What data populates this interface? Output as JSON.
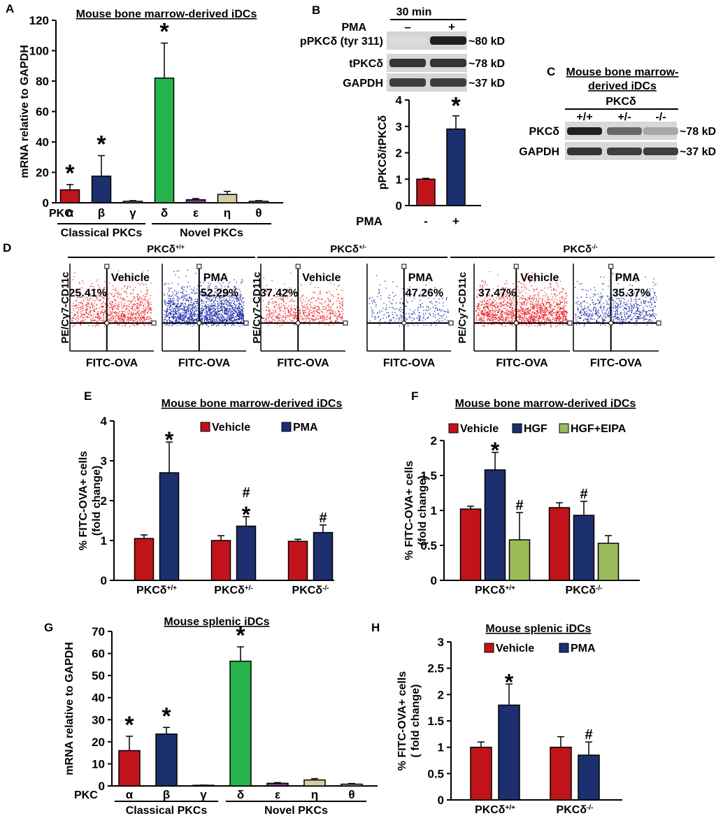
{
  "colors": {
    "red": "#c0141a",
    "navy": "#1c2f6e",
    "green": "#27b34b",
    "purple": "#7a3a93",
    "tan": "#d5cda6",
    "gray": "#bcbcbc",
    "lightgreen": "#9bbb59",
    "scatter_red": "#e8262a",
    "scatter_blue": "#1f2fa8"
  },
  "chart_data": [
    {
      "panel": "A",
      "type": "bar",
      "title": "Mouse bone marrow-derived iDCs",
      "ylabel": "mRNA relative to GAPDH",
      "ylim": [
        0,
        120
      ],
      "yticks": [
        0,
        20,
        40,
        60,
        80,
        100,
        120
      ],
      "category_prefix": "PKC",
      "categories": [
        "α",
        "β",
        "γ",
        "δ",
        "ε",
        "η",
        "θ"
      ],
      "values": [
        8.5,
        17.5,
        1.0,
        82,
        2.0,
        5.5,
        1.0
      ],
      "errors": [
        3.5,
        13.5,
        0.4,
        23,
        0.8,
        2.0,
        0.4
      ],
      "colors": [
        "red",
        "navy",
        "gray",
        "green",
        "purple",
        "tan",
        "gray"
      ],
      "marks": [
        "*",
        "*",
        "",
        "*",
        "",
        "",
        ""
      ],
      "groups": [
        {
          "label": "Classical PKCs",
          "from": 0,
          "to": 2
        },
        {
          "label": "Novel PKCs",
          "from": 3,
          "to": 6
        }
      ]
    },
    {
      "panel": "B",
      "type": "bar",
      "ylabel": "pPKCδ/tPKCδ",
      "ylim": [
        0,
        4
      ],
      "yticks": [
        0,
        1,
        2,
        3,
        4
      ],
      "category_prefix": "PMA",
      "categories": [
        "-",
        "+"
      ],
      "values": [
        1.0,
        2.9
      ],
      "errors": [
        0.03,
        0.5
      ],
      "colors": [
        "red",
        "navy"
      ],
      "marks": [
        "",
        "*"
      ]
    },
    {
      "panel": "E",
      "type": "bar",
      "title": "Mouse bone marrow-derived iDCs",
      "ylabel": [
        "% FITC-OVA+ cells",
        "(fold change)"
      ],
      "ylim": [
        0,
        4
      ],
      "yticks": [
        0,
        1,
        2,
        3,
        4
      ],
      "legend": [
        "Vehicle",
        "PMA"
      ],
      "categories": [
        {
          "base": "PKCδ",
          "sup": "+/+"
        },
        {
          "base": "PKCδ",
          "sup": "+/-"
        },
        {
          "base": "PKCδ",
          "sup": "-/-"
        }
      ],
      "series": [
        {
          "name": "Vehicle",
          "color": "red",
          "values": [
            1.05,
            1.0,
            0.98
          ],
          "errors": [
            0.09,
            0.12,
            0.05
          ],
          "marks": [
            "",
            "",
            ""
          ]
        },
        {
          "name": "PMA",
          "color": "navy",
          "values": [
            2.7,
            1.36,
            1.2
          ],
          "errors": [
            0.77,
            0.24,
            0.19
          ],
          "marks": [
            "*",
            "#\n*",
            "#"
          ]
        }
      ]
    },
    {
      "panel": "F",
      "type": "bar",
      "title": "Mouse bone marrow-derived iDCs",
      "ylabel": [
        "% FITC-OVA+ cells",
        "(fold change)"
      ],
      "ylim": [
        0,
        2
      ],
      "yticks": [
        0,
        0.5,
        1,
        1.5,
        2
      ],
      "ytick_labels": [
        "0",
        "0.5",
        "1",
        "1.5",
        "2"
      ],
      "legend": [
        "Vehicle",
        "HGF",
        "HGF+EIPA"
      ],
      "categories": [
        {
          "base": "PKCδ",
          "sup": "+/+"
        },
        {
          "base": "PKCδ",
          "sup": "-/-"
        }
      ],
      "series": [
        {
          "name": "Vehicle",
          "color": "red",
          "values": [
            1.02,
            1.04
          ],
          "errors": [
            0.04,
            0.07
          ],
          "marks": [
            "",
            ""
          ]
        },
        {
          "name": "HGF",
          "color": "navy",
          "values": [
            1.58,
            0.93
          ],
          "errors": [
            0.25,
            0.2
          ],
          "marks": [
            "*",
            "#"
          ]
        },
        {
          "name": "HGF+EIPA",
          "color": "lightgreen",
          "values": [
            0.58,
            0.53
          ],
          "errors": [
            0.39,
            0.11
          ],
          "marks": [
            "#",
            ""
          ]
        }
      ]
    },
    {
      "panel": "G",
      "type": "bar",
      "title": "Mouse splenic iDCs",
      "ylabel": "mRNA relative to GAPDH",
      "ylim": [
        0,
        70
      ],
      "yticks": [
        0,
        10,
        20,
        30,
        40,
        50,
        60,
        70
      ],
      "category_prefix": "PKC",
      "categories": [
        "α",
        "β",
        "γ",
        "δ",
        "ε",
        "η",
        "θ"
      ],
      "values": [
        16,
        23.5,
        0.3,
        56.5,
        1.2,
        2.7,
        0.8
      ],
      "errors": [
        6.5,
        3.0,
        0.1,
        6.5,
        0.3,
        0.6,
        0.3
      ],
      "colors": [
        "red",
        "navy",
        "gray",
        "green",
        "purple",
        "tan",
        "gray"
      ],
      "marks": [
        "*",
        "*",
        "",
        "*",
        "",
        "",
        ""
      ],
      "groups": [
        {
          "label": "Classical PKCs",
          "from": 0,
          "to": 2
        },
        {
          "label": "Novel PKCs",
          "from": 3,
          "to": 6
        }
      ]
    },
    {
      "panel": "H",
      "type": "bar",
      "title": "Mouse splenic iDCs",
      "ylabel": [
        "% FITC-OVA+ cells",
        "( fold change)"
      ],
      "ylim": [
        0,
        3
      ],
      "yticks": [
        0,
        0.5,
        1,
        1.5,
        2,
        2.5,
        3
      ],
      "ytick_labels": [
        "0",
        "0.5",
        "1",
        "1.5",
        "2",
        "2.5",
        "3"
      ],
      "legend": [
        "Vehicle",
        "PMA"
      ],
      "categories": [
        {
          "base": "PKCδ",
          "sup": "+/+"
        },
        {
          "base": "PKCδ",
          "sup": "-/-"
        }
      ],
      "series": [
        {
          "name": "Vehicle",
          "color": "red",
          "values": [
            1.0,
            1.0
          ],
          "errors": [
            0.1,
            0.2
          ],
          "marks": [
            "",
            ""
          ]
        },
        {
          "name": "PMA",
          "color": "navy",
          "values": [
            1.8,
            0.85
          ],
          "errors": [
            0.4,
            0.25
          ],
          "marks": [
            "*",
            "#"
          ]
        }
      ]
    }
  ],
  "blots": {
    "B": {
      "header": "30 min",
      "treatment_label": "PMA",
      "lanes": [
        "–",
        "+"
      ],
      "rows": [
        {
          "label": "pPKCδ (tyr 311)",
          "size": "~80 kD",
          "intensity": [
            0.05,
            0.95
          ]
        },
        {
          "label": "tPKCδ",
          "size": "~78 kD",
          "intensity": [
            0.85,
            0.85
          ]
        },
        {
          "label": "GAPDH",
          "size": "~37 kD",
          "intensity": [
            0.8,
            0.8
          ]
        }
      ]
    },
    "C": {
      "title_line1": "Mouse bone marrow-",
      "title_line2": "derived iDCs",
      "gene": "PKCδ",
      "lanes": [
        "+/+",
        "+/-",
        "-/-"
      ],
      "rows": [
        {
          "label": "PKCδ",
          "size": "~78 kD",
          "intensity": [
            0.95,
            0.6,
            0.3
          ]
        },
        {
          "label": "GAPDH",
          "size": "~37 kD",
          "intensity": [
            0.85,
            0.8,
            0.8
          ]
        }
      ]
    }
  },
  "flow": {
    "panel": "D",
    "ylabel": "PE/Cy7-CD11c",
    "xlabel": "FITC-OVA",
    "groups": [
      {
        "genotype_base": "PKCδ",
        "genotype_sup": "+/+",
        "plots": [
          {
            "condition": "Vehicle",
            "percent": "25.41%",
            "color": "scatter_red",
            "density": 900
          },
          {
            "condition": "PMA",
            "percent": "52.29%",
            "color": "scatter_blue",
            "density": 1700
          }
        ]
      },
      {
        "genotype_base": "PKCδ",
        "genotype_sup": "+/-",
        "plots": [
          {
            "condition": "Vehicle",
            "percent": "37.42%",
            "color": "scatter_red",
            "density": 650
          },
          {
            "condition": "PMA",
            "percent": "47.26%",
            "color": "scatter_blue",
            "density": 300
          }
        ]
      },
      {
        "genotype_base": "PKCδ",
        "genotype_sup": "-/-",
        "plots": [
          {
            "condition": "Vehicle",
            "percent": "37.47%",
            "color": "scatter_red",
            "density": 1500
          },
          {
            "condition": "PMA",
            "percent": "35.37%",
            "color": "scatter_blue",
            "density": 700
          }
        ]
      }
    ]
  },
  "panel_letters": [
    "A",
    "B",
    "C",
    "D",
    "E",
    "F",
    "G",
    "H"
  ]
}
